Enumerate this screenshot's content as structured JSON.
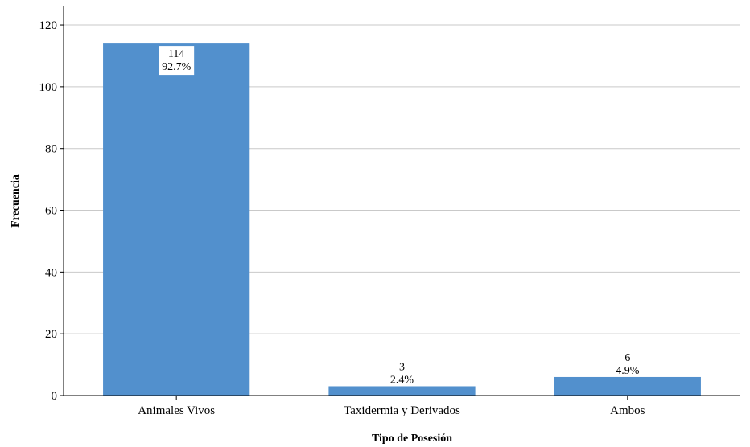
{
  "chart_data": {
    "type": "bar",
    "categories": [
      "Animales Vivos",
      "Taxidermia y Derivados",
      "Ambos"
    ],
    "values": [
      114,
      3,
      6
    ],
    "percent_labels": [
      "92.7%",
      "2.4%",
      "4.9%"
    ],
    "count_labels": [
      "114",
      "3",
      "6"
    ],
    "xlabel": "Tipo de Posesión",
    "ylabel": "Frecuencia",
    "ylim": [
      0,
      126
    ],
    "yticks": [
      0,
      20,
      40,
      60,
      80,
      100,
      120
    ],
    "grid": true,
    "bar_color": "#5290cd"
  }
}
